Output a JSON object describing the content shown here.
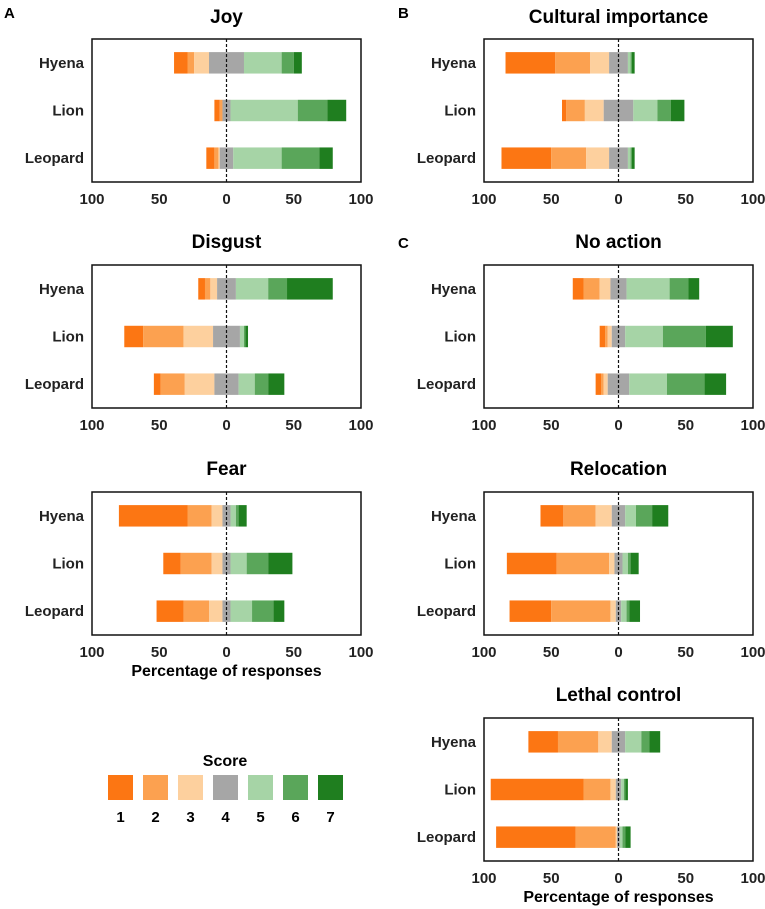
{
  "colors": [
    "#fc7613",
    "#fca150",
    "#fdd09e",
    "#a6a6a6",
    "#a6d4a6",
    "#5aa65a",
    "#1f7e1f"
  ],
  "legend": {
    "title": "Score",
    "labels": [
      "1",
      "2",
      "3",
      "4",
      "5",
      "6",
      "7"
    ]
  },
  "chart_data": [
    {
      "type": "bar",
      "orientation": "horizontal",
      "stacked": "diverging",
      "panel_letter": "A",
      "title": "Joy",
      "xlabel": "",
      "xlim": [
        -100,
        100
      ],
      "xticks": [
        "100",
        "50",
        "0",
        "50",
        "100"
      ],
      "categories": [
        "Hyena",
        "Lion",
        "Leopard"
      ],
      "segments": [
        [
          10,
          5,
          11,
          26,
          28,
          9,
          6
        ],
        [
          4,
          2,
          0,
          6,
          50,
          22,
          14
        ],
        [
          6,
          3,
          1,
          10,
          36,
          28,
          10
        ]
      ]
    },
    {
      "type": "bar",
      "orientation": "horizontal",
      "stacked": "diverging",
      "panel_letter": "B",
      "title": "Cultural importance",
      "xlabel": "",
      "xlim": [
        -100,
        100
      ],
      "xticks": [
        "100",
        "50",
        "0",
        "50",
        "100"
      ],
      "categories": [
        "Hyena",
        "Lion",
        "Leopard"
      ],
      "segments": [
        [
          37,
          26,
          14,
          14,
          2,
          1,
          2
        ],
        [
          3,
          14,
          14,
          22,
          18,
          10,
          10
        ],
        [
          37,
          26,
          17,
          14,
          2,
          1,
          2
        ]
      ]
    },
    {
      "type": "bar",
      "orientation": "horizontal",
      "stacked": "diverging",
      "panel_letter": "",
      "title": "Disgust",
      "xlabel": "",
      "xlim": [
        -100,
        100
      ],
      "xticks": [
        "100",
        "50",
        "0",
        "50",
        "100"
      ],
      "categories": [
        "Hyena",
        "Lion",
        "Leopard"
      ],
      "segments": [
        [
          5,
          4,
          5,
          14,
          24,
          14,
          34
        ],
        [
          14,
          30,
          22,
          20,
          3,
          1,
          2
        ],
        [
          5,
          18,
          22,
          18,
          12,
          10,
          12
        ]
      ]
    },
    {
      "type": "bar",
      "orientation": "horizontal",
      "stacked": "diverging",
      "panel_letter": "C",
      "title": "No action",
      "xlabel": "",
      "xlim": [
        -100,
        100
      ],
      "xticks": [
        "100",
        "50",
        "0",
        "50",
        "100"
      ],
      "categories": [
        "Hyena",
        "Lion",
        "Leopard"
      ],
      "segments": [
        [
          8,
          12,
          8,
          12,
          32,
          14,
          8
        ],
        [
          4,
          2,
          3,
          10,
          28,
          32,
          20
        ],
        [
          4,
          2,
          3,
          16,
          28,
          28,
          16
        ]
      ]
    },
    {
      "type": "bar",
      "orientation": "horizontal",
      "stacked": "diverging",
      "panel_letter": "",
      "title": "Fear",
      "xlabel": "Percentage of responses",
      "xlim": [
        -100,
        100
      ],
      "xticks": [
        "100",
        "50",
        "0",
        "50",
        "100"
      ],
      "categories": [
        "Hyena",
        "Lion",
        "Leopard"
      ],
      "segments": [
        [
          51,
          18,
          8,
          6,
          4,
          2,
          6
        ],
        [
          13,
          23,
          8,
          6,
          12,
          16,
          18
        ],
        [
          20,
          19,
          10,
          6,
          16,
          16,
          8
        ]
      ]
    },
    {
      "type": "bar",
      "orientation": "horizontal",
      "stacked": "diverging",
      "panel_letter": "",
      "title": "Relocation",
      "xlabel": "",
      "xlim": [
        -100,
        100
      ],
      "xticks": [
        "100",
        "50",
        "0",
        "50",
        "100"
      ],
      "categories": [
        "Hyena",
        "Lion",
        "Leopard"
      ],
      "segments": [
        [
          17,
          24,
          12,
          10,
          8,
          12,
          12
        ],
        [
          37,
          39,
          4,
          6,
          4,
          2,
          6
        ],
        [
          31,
          44,
          4,
          4,
          4,
          2,
          8
        ]
      ]
    },
    {
      "type": "bar",
      "orientation": "horizontal",
      "stacked": "diverging",
      "panel_letter": "",
      "title": "Lethal control",
      "xlabel": "Percentage of responses",
      "xlim": [
        -100,
        100
      ],
      "xticks": [
        "100",
        "50",
        "0",
        "50",
        "100"
      ],
      "categories": [
        "Hyena",
        "Lion",
        "Leopard"
      ],
      "segments": [
        [
          22,
          30,
          10,
          10,
          12,
          6,
          8
        ],
        [
          69,
          20,
          4,
          4,
          2,
          1,
          2
        ],
        [
          59,
          30,
          1,
          2,
          2,
          2,
          4
        ]
      ]
    }
  ]
}
